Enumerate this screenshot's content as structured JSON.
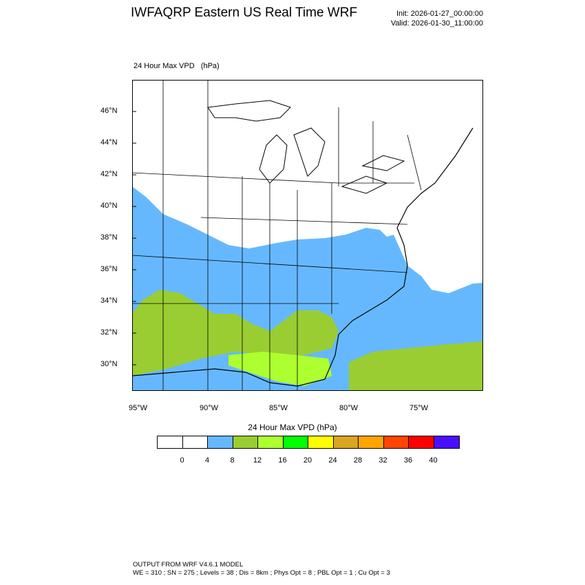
{
  "header": {
    "title": "IWFAQRP Eastern US Real Time WRF",
    "init": "Init: 2026-01-27_00:00:00",
    "valid": "Valid: 2026-01-30_11:00:00"
  },
  "map": {
    "subtitle": "24 Hour Max VPD   (hPa)",
    "lat_labels": [
      "46°N",
      "44°N",
      "42°N",
      "40°N",
      "38°N",
      "36°N",
      "34°N",
      "32°N",
      "30°N"
    ],
    "lon_labels": [
      "95°W",
      "90°W",
      "85°W",
      "80°W",
      "75°W"
    ],
    "region_colors": {
      "low": "#ffffff",
      "band_4_8": "#66b8fe",
      "band_8_12": "#9acd32",
      "band_12_16": "#adff2f"
    }
  },
  "colorbar": {
    "title": "24 Hour Max VPD  (hPa)",
    "colors": [
      "#ffffff",
      "#ffffff",
      "#66b8fe",
      "#9acd32",
      "#adff2f",
      "#00ff00",
      "#ffff00",
      "#daa520",
      "#ffa500",
      "#ff4500",
      "#ff0000",
      "#4b0fff"
    ],
    "labels": [
      "0",
      "4",
      "8",
      "12",
      "16",
      "20",
      "24",
      "28",
      "32",
      "36",
      "40"
    ]
  },
  "footer": {
    "line1": "OUTPUT FROM WRF V4.6.1 MODEL",
    "line2": "WE = 310 ; SN = 275 ; Levels = 38 ; Dis = 8km ; Phys Opt = 8 ; PBL Opt = 1 ; Cu Opt = 3"
  }
}
